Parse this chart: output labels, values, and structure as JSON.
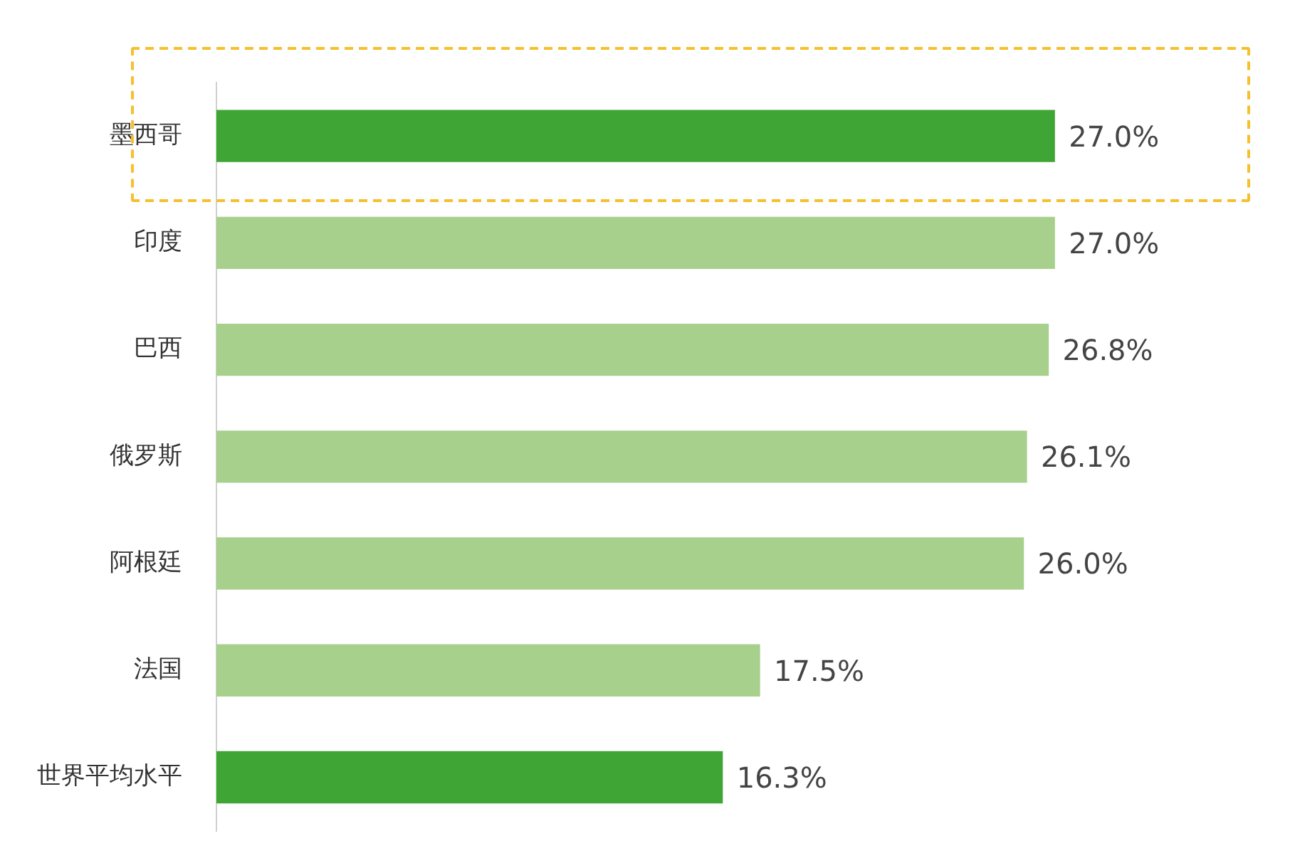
{
  "chart_data": {
    "type": "bar",
    "orientation": "horizontal",
    "categories": [
      "墨西哥",
      "印度",
      "巴西",
      "俄罗斯",
      "阿根廷",
      "法国",
      "世界平均水平"
    ],
    "values": [
      27.0,
      27.0,
      26.8,
      26.1,
      26.0,
      17.5,
      16.3
    ],
    "colors": [
      "#3fa535",
      "#a8d08d",
      "#a8d08d",
      "#a8d08d",
      "#a8d08d",
      "#a8d08d",
      "#3fa535"
    ],
    "value_labels": [
      "27.0%",
      "27.0%",
      "26.8%",
      "26.1%",
      "26.0%",
      "17.5%",
      "16.3%"
    ],
    "grid": false,
    "legend": false
  }
}
